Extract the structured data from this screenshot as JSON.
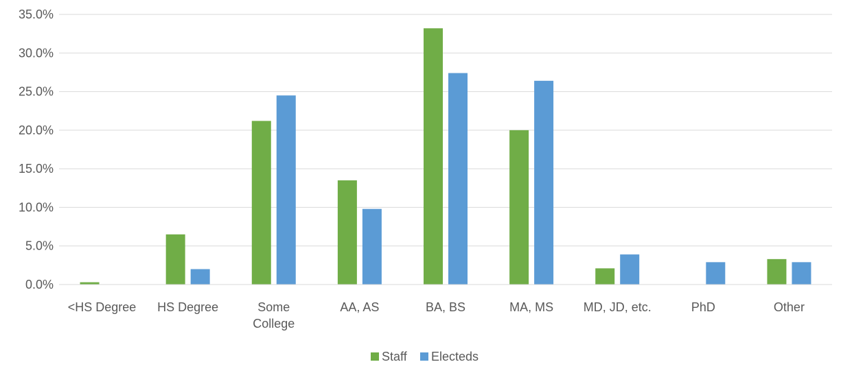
{
  "chart_data": {
    "type": "bar",
    "categories": [
      [
        "<HS Degree"
      ],
      [
        "HS Degree"
      ],
      [
        "Some",
        "College"
      ],
      [
        "AA, AS"
      ],
      [
        "BA, BS"
      ],
      [
        "MA, MS"
      ],
      [
        "MD, JD, etc."
      ],
      [
        "PhD"
      ],
      [
        "Other"
      ]
    ],
    "series": [
      {
        "name": "Staff",
        "color": "#70AD47",
        "values": [
          0.3,
          6.5,
          21.2,
          13.5,
          33.2,
          20.0,
          2.1,
          0.0,
          3.3
        ]
      },
      {
        "name": "Electeds",
        "color": "#5B9BD5",
        "values": [
          0.0,
          2.0,
          24.5,
          9.8,
          27.4,
          26.4,
          3.9,
          2.9,
          2.9
        ]
      }
    ],
    "ylim": [
      0,
      35
    ],
    "yticks": [
      "0.0%",
      "5.0%",
      "10.0%",
      "15.0%",
      "20.0%",
      "25.0%",
      "30.0%",
      "35.0%"
    ],
    "ytick_values": [
      0,
      5,
      10,
      15,
      20,
      25,
      30,
      35
    ],
    "grid": true,
    "gridColor": "#D9D9D9",
    "legend_position": "bottom"
  }
}
